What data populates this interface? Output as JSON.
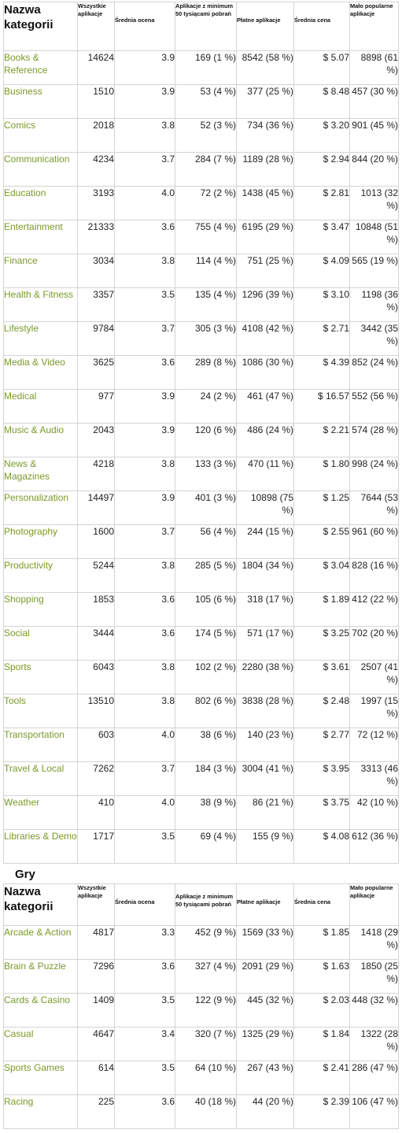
{
  "headers": {
    "name": "Nazwa kategorii",
    "all_apps": "Wszystkie aplikacje",
    "avg_rating": "Średnia ocena",
    "apps_50k": "Aplikacje z minimum 50 tysiącami pobrań",
    "paid_apps": "Płatne aplikacje",
    "avg_price": "Średnia cena",
    "unpopular_apps": "Mało popularne aplikacje"
  },
  "apps_table": [
    {
      "name": "Books & Reference",
      "all": "14624",
      "rating": "3.9",
      "d50k": "169 (1 %)",
      "paid": "8542 (58 %)",
      "price": "$ 5.07",
      "unpopular": "8898 (61 %)"
    },
    {
      "name": "Business",
      "all": "1510",
      "rating": "3.9",
      "d50k": "53 (4 %)",
      "paid": "377 (25 %)",
      "price": "$ 8.48",
      "unpopular": "457 (30 %)"
    },
    {
      "name": "Comics",
      "all": "2018",
      "rating": "3.8",
      "d50k": "52 (3 %)",
      "paid": "734 (36 %)",
      "price": "$ 3.20",
      "unpopular": "901 (45 %)"
    },
    {
      "name": "Communication",
      "all": "4234",
      "rating": "3.7",
      "d50k": "284 (7 %)",
      "paid": "1189 (28 %)",
      "price": "$ 2.94",
      "unpopular": "844 (20 %)"
    },
    {
      "name": "Education",
      "all": "3193",
      "rating": "4.0",
      "d50k": "72 (2 %)",
      "paid": "1438 (45 %)",
      "price": "$ 2.81",
      "unpopular": "1013 (32 %)"
    },
    {
      "name": "Entertainment",
      "all": "21333",
      "rating": "3.6",
      "d50k": "755 (4 %)",
      "paid": "6195 (29 %)",
      "price": "$ 3.47",
      "unpopular": "10848 (51 %)"
    },
    {
      "name": "Finance",
      "all": "3034",
      "rating": "3.8",
      "d50k": "114 (4 %)",
      "paid": "751 (25 %)",
      "price": "$ 4.09",
      "unpopular": "565 (19 %)"
    },
    {
      "name": "Health & Fitness",
      "all": "3357",
      "rating": "3.5",
      "d50k": "135 (4 %)",
      "paid": "1296 (39 %)",
      "price": "$ 3.10",
      "unpopular": "1198 (36 %)"
    },
    {
      "name": "Lifestyle",
      "all": "9784",
      "rating": "3.7",
      "d50k": "305 (3 %)",
      "paid": "4108 (42 %)",
      "price": "$ 2.71",
      "unpopular": "3442 (35 %)"
    },
    {
      "name": "Media & Video",
      "all": "3625",
      "rating": "3.6",
      "d50k": "289 (8 %)",
      "paid": "1086 (30 %)",
      "price": "$ 4.39",
      "unpopular": "852 (24 %)"
    },
    {
      "name": "Medical",
      "all": "977",
      "rating": "3.9",
      "d50k": "24 (2 %)",
      "paid": "461 (47 %)",
      "price": "$ 16.57",
      "unpopular": "552 (56 %)"
    },
    {
      "name": "Music & Audio",
      "all": "2043",
      "rating": "3.9",
      "d50k": "120 (6 %)",
      "paid": "486 (24 %)",
      "price": "$ 2.21",
      "unpopular": "574 (28 %)"
    },
    {
      "name": "News & Magazines",
      "all": "4218",
      "rating": "3.8",
      "d50k": "133 (3 %)",
      "paid": "470 (11 %)",
      "price": "$ 1.80",
      "unpopular": "998 (24 %)"
    },
    {
      "name": "Personalization",
      "all": "14497",
      "rating": "3.9",
      "d50k": "401 (3 %)",
      "paid": "10898 (75 %)",
      "price": "$ 1.25",
      "unpopular": "7644 (53 %)"
    },
    {
      "name": "Photography",
      "all": "1600",
      "rating": "3.7",
      "d50k": "56 (4 %)",
      "paid": "244 (15 %)",
      "price": "$ 2.55",
      "unpopular": "961 (60 %)"
    },
    {
      "name": "Productivity",
      "all": "5244",
      "rating": "3.8",
      "d50k": "285 (5 %)",
      "paid": "1804 (34 %)",
      "price": "$ 3.04",
      "unpopular": "828 (16 %)"
    },
    {
      "name": "Shopping",
      "all": "1853",
      "rating": "3.6",
      "d50k": "105 (6 %)",
      "paid": "318 (17 %)",
      "price": "$ 1.89",
      "unpopular": "412 (22 %)"
    },
    {
      "name": "Social",
      "all": "3444",
      "rating": "3.6",
      "d50k": "174 (5 %)",
      "paid": "571 (17 %)",
      "price": "$ 3.25",
      "unpopular": "702 (20 %)"
    },
    {
      "name": "Sports",
      "all": "6043",
      "rating": "3.8",
      "d50k": "102 (2 %)",
      "paid": "2280 (38 %)",
      "price": "$ 3.61",
      "unpopular": "2507 (41 %)"
    },
    {
      "name": "Tools",
      "all": "13510",
      "rating": "3.8",
      "d50k": "802 (6 %)",
      "paid": "3838 (28 %)",
      "price": "$ 2.48",
      "unpopular": "1997 (15 %)"
    },
    {
      "name": "Transportation",
      "all": "603",
      "rating": "4.0",
      "d50k": "38 (6 %)",
      "paid": "140 (23 %)",
      "price": "$ 2.77",
      "unpopular": "72 (12 %)"
    },
    {
      "name": "Travel & Local",
      "all": "7262",
      "rating": "3.7",
      "d50k": "184 (3 %)",
      "paid": "3004 (41 %)",
      "price": "$ 3.95",
      "unpopular": "3313 (46 %)"
    },
    {
      "name": "Weather",
      "all": "410",
      "rating": "4.0",
      "d50k": "38 (9 %)",
      "paid": "86 (21 %)",
      "price": "$ 3.75",
      "unpopular": "42 (10 %)"
    },
    {
      "name": "Libraries & Demo",
      "all": "1717",
      "rating": "3.5",
      "d50k": "69 (4 %)",
      "paid": "155 (9 %)",
      "price": "$ 4.08",
      "unpopular": "612 (36 %)"
    }
  ],
  "games_section_title": "Gry",
  "games_table": [
    {
      "name": "Arcade & Action",
      "all": "4817",
      "rating": "3.3",
      "d50k": "452 (9 %)",
      "paid": "1569 (33 %)",
      "price": "$ 1.85",
      "unpopular": "1418 (29 %)"
    },
    {
      "name": "Brain & Puzzle",
      "all": "7296",
      "rating": "3.6",
      "d50k": "327 (4 %)",
      "paid": "2091 (29 %)",
      "price": "$ 1.63",
      "unpopular": "1850 (25 %)"
    },
    {
      "name": "Cards & Casino",
      "all": "1409",
      "rating": "3.5",
      "d50k": "122 (9 %)",
      "paid": "445 (32 %)",
      "price": "$ 2.03",
      "unpopular": "448 (32 %)"
    },
    {
      "name": "Casual",
      "all": "4647",
      "rating": "3.4",
      "d50k": "320 (7 %)",
      "paid": "1325 (29 %)",
      "price": "$ 1.84",
      "unpopular": "1322 (28 %)"
    },
    {
      "name": "Sports Games",
      "all": "614",
      "rating": "3.5",
      "d50k": "64 (10 %)",
      "paid": "267 (43 %)",
      "price": "$ 2.41",
      "unpopular": "286 (47 %)"
    },
    {
      "name": "Racing",
      "all": "225",
      "rating": "3.6",
      "d50k": "40 (18 %)",
      "paid": "44 (20 %)",
      "price": "$ 2.39",
      "unpopular": "106 (47 %)"
    }
  ]
}
